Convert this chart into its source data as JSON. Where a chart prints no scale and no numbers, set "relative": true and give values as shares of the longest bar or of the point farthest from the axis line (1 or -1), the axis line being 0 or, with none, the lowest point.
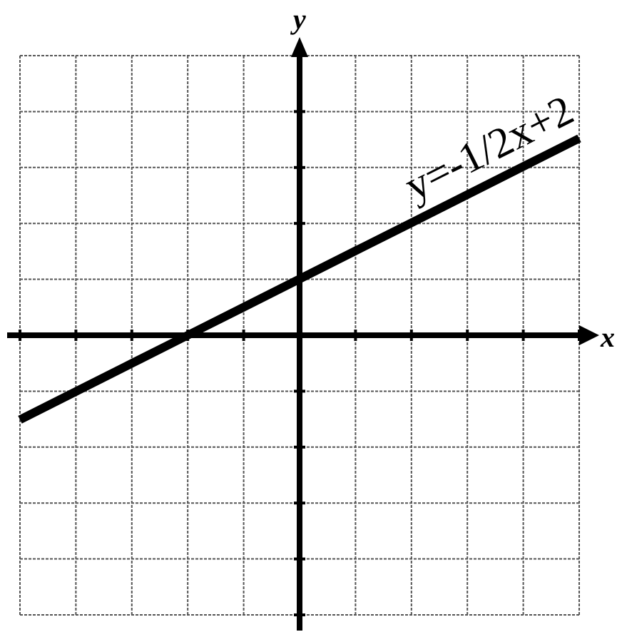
{
  "chart_data": {
    "type": "line",
    "xlabel": "x",
    "ylabel": "y",
    "relative": true,
    "categories": [
      null,
      null,
      null,
      null,
      null,
      null,
      null,
      null,
      null,
      null,
      null
    ],
    "series": [
      {
        "color": "#000000",
        "values": [
          -0.4286,
          -0.2857,
          -0.1429,
          0,
          0.1429,
          0.2857,
          0.4286,
          0.5714,
          0.7143,
          0.8571,
          1
        ]
      }
    ],
    "annotations": [
      "y=-1/2x+2"
    ],
    "grid": true,
    "marker": "none",
    "line_style": "solid"
  }
}
